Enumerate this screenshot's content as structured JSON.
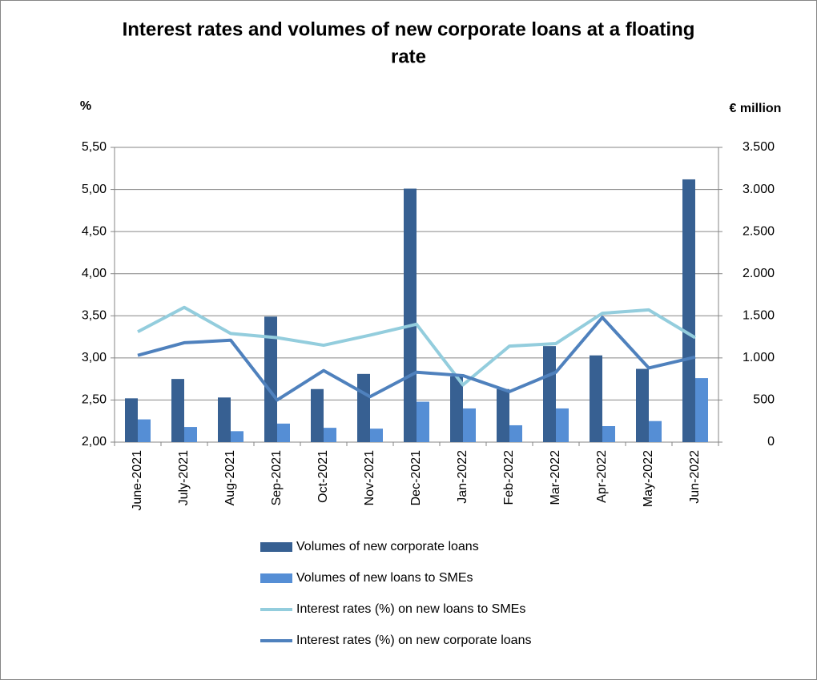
{
  "chart_data": {
    "type": "bar",
    "title": [
      "Interest rates and volumes of new corporate loans at a floating",
      "rate"
    ],
    "y_label": "%",
    "y2_label": "€ million",
    "categories": [
      "June-2021",
      "July-2021",
      "Aug-2021",
      "Sep-2021",
      "Oct-2021",
      "Nov-2021",
      "Dec-2021",
      "Jan-2022",
      "Feb-2022",
      "Mar-2022",
      "Apr-2022",
      "May-2022",
      "Jun-2022"
    ],
    "ylim": [
      2,
      5.5
    ],
    "yticks": [
      {
        "value": 2,
        "label": "2,00"
      },
      {
        "value": 2.5,
        "label": "2,50"
      },
      {
        "value": 3,
        "label": "3,00"
      },
      {
        "value": 3.5,
        "label": "3,50"
      },
      {
        "value": 4,
        "label": "4,00"
      },
      {
        "value": 4.5,
        "label": "4,50"
      },
      {
        "value": 5,
        "label": "5,00"
      },
      {
        "value": 5.5,
        "label": "5,50"
      }
    ],
    "y2lim": [
      0,
      3500
    ],
    "y2ticks": [
      0,
      500,
      {
        "value": 1000,
        "label": "1.000"
      },
      {
        "value": 1500,
        "label": "1.500"
      },
      {
        "value": 2000,
        "label": "2.000"
      },
      {
        "value": 2500,
        "label": "2.500"
      },
      {
        "value": 3000,
        "label": "3.000"
      },
      {
        "value": 3500,
        "label": "3.500"
      }
    ],
    "grid": true,
    "series": [
      {
        "name": "Volumes of new corporate loans",
        "type": "bar",
        "axis": "y2",
        "color": "#376092",
        "values": [
          520,
          750,
          530,
          1490,
          630,
          810,
          3010,
          780,
          630,
          1140,
          1030,
          870,
          3120
        ]
      },
      {
        "name": "Volumes of new loans to SMEs",
        "type": "bar",
        "axis": "y2",
        "color": "#558ed5",
        "values": [
          270,
          180,
          130,
          220,
          170,
          160,
          480,
          400,
          200,
          400,
          190,
          250,
          760
        ]
      },
      {
        "name": "Interest rates (%) on new loans to SMEs",
        "type": "line",
        "color": "#93cddd",
        "values": [
          3.31,
          3.6,
          3.29,
          3.24,
          3.15,
          3.27,
          3.4,
          2.68,
          3.14,
          3.17,
          3.53,
          3.57,
          3.24
        ]
      },
      {
        "name": "Interest rates (%) on new corporate loans",
        "type": "line",
        "color": "#4f81bd",
        "values": [
          3.03,
          3.18,
          3.21,
          2.5,
          2.85,
          2.54,
          2.83,
          2.79,
          2.6,
          2.83,
          3.48,
          2.88,
          3.01
        ]
      }
    ]
  }
}
